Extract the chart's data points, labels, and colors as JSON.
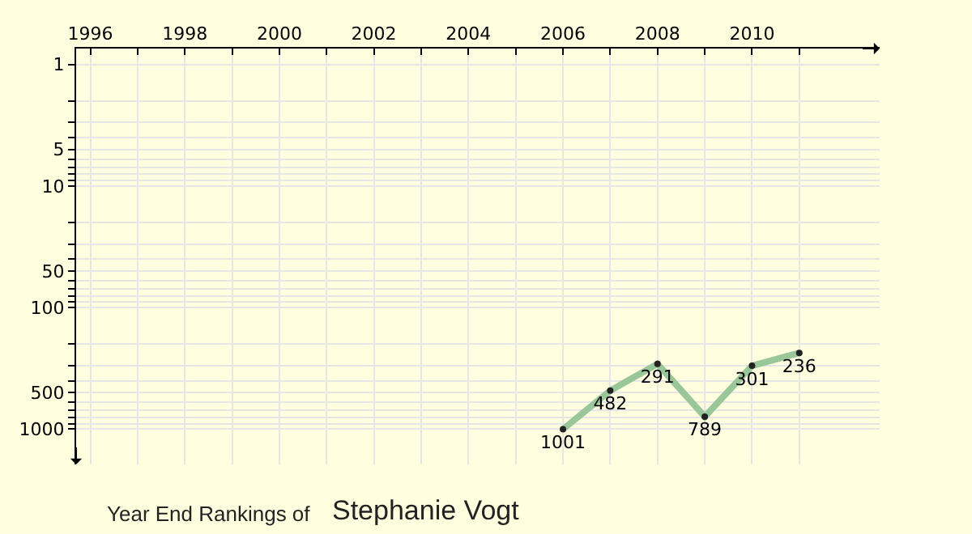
{
  "chart_data": {
    "type": "line",
    "title": "Year End Rankings of",
    "subtitle": "Stephanie Vogt",
    "x": [
      2006,
      2007,
      2008,
      2009,
      2010,
      2011
    ],
    "series": [
      {
        "color": "#99c799",
        "values": [
          1001,
          482,
          291,
          789,
          301,
          236
        ]
      }
    ],
    "data_labels": true,
    "marker": "circle",
    "line_style": "solid",
    "log": "y",
    "grid": true,
    "xlim": [
      1995.7,
      2012.7
    ],
    "xticks": [
      1996,
      {
        "value": 1997,
        "label": null
      },
      1998,
      {
        "value": 1999,
        "label": null
      },
      2000,
      {
        "value": 2001,
        "label": null
      },
      2002,
      {
        "value": 2003,
        "label": null
      },
      2004,
      {
        "value": 2005,
        "label": null
      },
      2006,
      {
        "value": 2007,
        "label": null
      },
      2008,
      {
        "value": 2009,
        "label": null
      },
      2010,
      {
        "value": 2011,
        "label": null
      }
    ],
    "ylim": [
      1950,
      0.74
    ],
    "yticks": [
      1,
      {
        "value": 2,
        "label": null
      },
      {
        "value": 3,
        "label": null
      },
      {
        "value": 4,
        "label": null
      },
      5,
      {
        "value": 6,
        "label": null
      },
      {
        "value": 7,
        "label": null
      },
      {
        "value": 8,
        "label": null
      },
      {
        "value": 9,
        "label": null
      },
      10,
      {
        "value": 20,
        "label": null
      },
      {
        "value": 30,
        "label": null
      },
      {
        "value": 40,
        "label": null
      },
      50,
      {
        "value": 60,
        "label": null
      },
      {
        "value": 70,
        "label": null
      },
      {
        "value": 80,
        "label": null
      },
      {
        "value": 90,
        "label": null
      },
      100,
      {
        "value": 200,
        "label": null
      },
      {
        "value": 300,
        "label": null
      },
      {
        "value": 400,
        "label": null
      },
      500,
      {
        "value": 600,
        "label": null
      },
      {
        "value": 700,
        "label": null
      },
      {
        "value": 800,
        "label": null
      },
      {
        "value": 900,
        "label": null
      },
      1000
    ]
  }
}
